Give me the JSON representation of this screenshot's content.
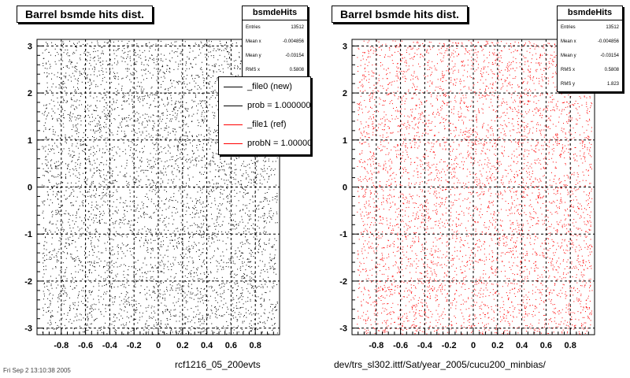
{
  "chart_data": [
    {
      "type": "scatter",
      "title": "Barrel bsmde hits dist.",
      "xlabel": "",
      "ylabel": "",
      "xlim": [
        -1.0,
        1.0
      ],
      "ylim": [
        -3.14,
        3.14
      ],
      "x_ticks": [
        -0.8,
        -0.6,
        -0.4,
        -0.2,
        0,
        0.2,
        0.4,
        0.6,
        0.8
      ],
      "x_tick_labels": [
        "-0.8",
        "-0.6",
        "-0.4",
        "-0.2",
        "0",
        "0.2",
        "0.4",
        "0.6",
        "0.8"
      ],
      "y_ticks": [
        -3,
        -2,
        -1,
        0,
        1,
        2,
        3
      ],
      "y_tick_labels": [
        "-3",
        "-2",
        "-1",
        "0",
        "1",
        "2",
        "3"
      ],
      "grid": true,
      "marker_color": "#000000",
      "stats": {
        "name": "bsmdeHits",
        "rows": [
          {
            "label": "Entries",
            "value": "13512"
          },
          {
            "label": "Mean x",
            "value": "-0.004856"
          },
          {
            "label": "Mean y",
            "value": "-0.03154"
          },
          {
            "label": "RMS x",
            "value": "0.5808"
          }
        ]
      },
      "legend": {
        "placement": "top-right",
        "entries": [
          {
            "text": "_file0 (new)",
            "color": "#000000"
          },
          {
            "text": "prob = 1.000000",
            "color": "#000000"
          },
          {
            "text": "_file1 (ref)",
            "color": "#ff0000"
          },
          {
            "text": "probN = 1.000000",
            "color": "#ff0000"
          }
        ]
      },
      "footer": "rcf1216_05_200evts"
    },
    {
      "type": "scatter",
      "title": "Barrel bsmde hits dist.",
      "xlabel": "",
      "ylabel": "",
      "xlim": [
        -1.0,
        1.0
      ],
      "ylim": [
        -3.14,
        3.14
      ],
      "x_ticks": [
        -0.8,
        -0.6,
        -0.4,
        -0.2,
        0,
        0.2,
        0.4,
        0.6,
        0.8
      ],
      "x_tick_labels": [
        "-0.8",
        "-0.6",
        "-0.4",
        "-0.2",
        "0",
        "0.2",
        "0.4",
        "0.6",
        "0.8"
      ],
      "y_ticks": [
        -3,
        -2,
        -1,
        0,
        1,
        2,
        3
      ],
      "y_tick_labels": [
        "-3",
        "-2",
        "-1",
        "0",
        "1",
        "2",
        "3"
      ],
      "grid": true,
      "marker_color": "#ff0000",
      "stats": {
        "name": "bsmdeHits",
        "rows": [
          {
            "label": "Entries",
            "value": "13512"
          },
          {
            "label": "Mean x",
            "value": "-0.004856"
          },
          {
            "label": "Mean y",
            "value": "-0.03154"
          },
          {
            "label": "RMS x",
            "value": "0.5808"
          },
          {
            "label": "RMS y",
            "value": "1.823"
          }
        ]
      },
      "footer": "dev/trs_sl302.ittf/Sat/year_2005/cucu200_minbias/"
    }
  ],
  "corner_note": "Fri Sep 2 13:10:38 2005"
}
